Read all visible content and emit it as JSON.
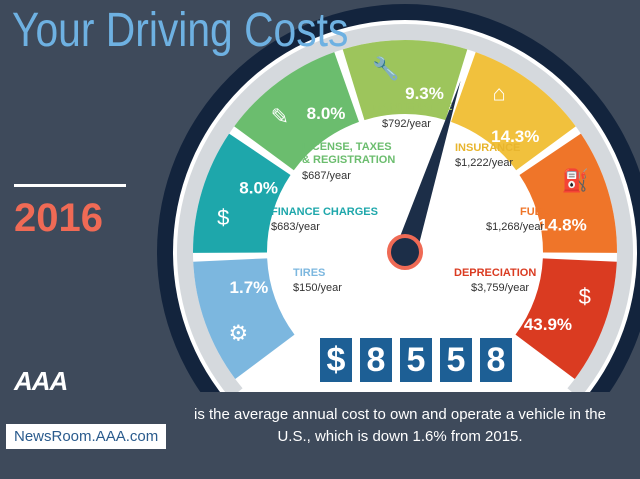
{
  "title": "Your Driving Costs",
  "year": "2016",
  "logo": "AAA",
  "url": "NewsRoom.AAA.com",
  "total_digits": [
    "$",
    "8",
    "5",
    "5",
    "8"
  ],
  "caption": "is the average annual cost to own and operate a vehicle in the U.S., which is down 1.6% from 2015.",
  "categories": [
    {
      "name": "TIRES",
      "amount": "$150/year",
      "percent": "1.7%",
      "color": "#7cb7df",
      "icon": "tire-icon"
    },
    {
      "name": "FINANCE CHARGES",
      "amount": "$683/year",
      "percent": "8.0%",
      "color": "#1ea7ab",
      "icon": "money-stack-icon"
    },
    {
      "name": "LICENSE, TAXES & REGISTRATION",
      "amount": "$687/year",
      "percent": "8.0%",
      "color": "#6bbd6e",
      "icon": "document-pen-icon"
    },
    {
      "name": "MAINTENANCE",
      "amount": "$792/year",
      "percent": "9.3%",
      "color": "#9dc55c",
      "icon": "tools-icon"
    },
    {
      "name": "INSURANCE",
      "amount": "$1,222/year",
      "percent": "14.3%",
      "color": "#f1c13d",
      "icon": "garage-car-icon"
    },
    {
      "name": "FUEL",
      "amount": "$1,268/year",
      "percent": "14.8%",
      "color": "#ef7529",
      "icon": "fuel-pump-icon"
    },
    {
      "name": "DEPRECIATION",
      "amount": "$3,759/year",
      "percent": "43.9%",
      "color": "#da3b21",
      "icon": "car-dollar-icon"
    }
  ]
}
